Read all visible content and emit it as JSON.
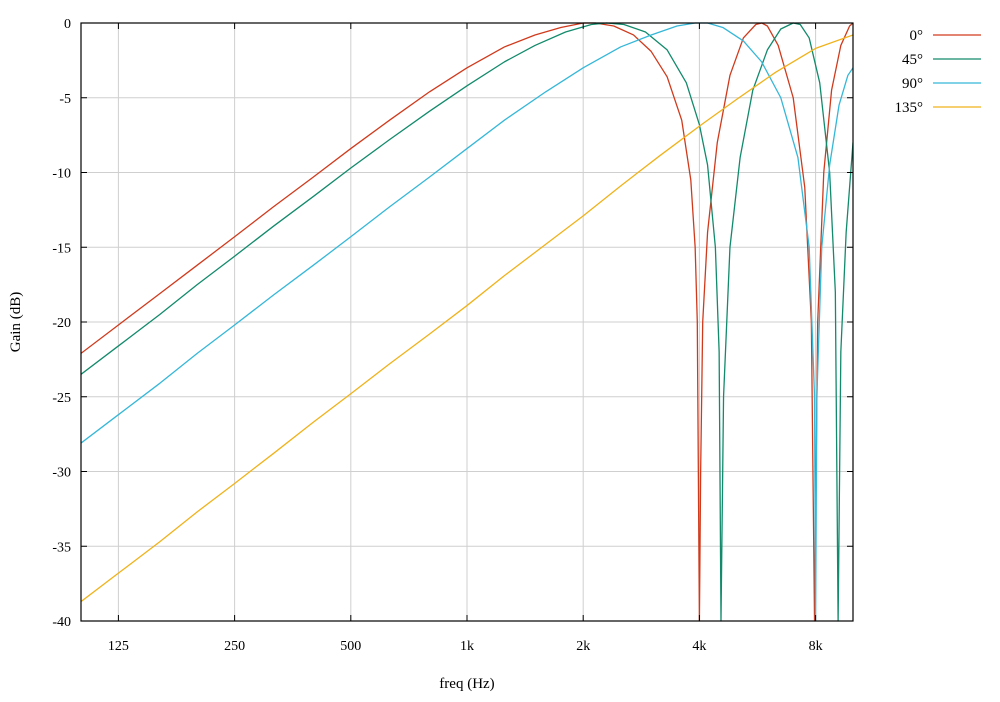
{
  "chart_data": {
    "type": "line",
    "title": "",
    "xlabel": "freq (Hz)",
    "ylabel": "Gain (dB)",
    "xscale": "log",
    "xlim": [
      100,
      10000
    ],
    "ylim": [
      -40,
      0
    ],
    "grid": true,
    "legend_position": "right",
    "x_ticks": [
      {
        "value": 125,
        "label": "125"
      },
      {
        "value": 250,
        "label": "250"
      },
      {
        "value": 500,
        "label": "500"
      },
      {
        "value": 1000,
        "label": "1k"
      },
      {
        "value": 2000,
        "label": "2k"
      },
      {
        "value": 4000,
        "label": "4k"
      },
      {
        "value": 8000,
        "label": "8k"
      }
    ],
    "y_ticks": [
      {
        "value": 0,
        "label": "0"
      },
      {
        "value": -5,
        "label": "-5"
      },
      {
        "value": -10,
        "label": "-10"
      },
      {
        "value": -15,
        "label": "-15"
      },
      {
        "value": -20,
        "label": "-20"
      },
      {
        "value": -25,
        "label": "-25"
      },
      {
        "value": -30,
        "label": "-30"
      },
      {
        "value": -35,
        "label": "-35"
      },
      {
        "value": -40,
        "label": "-40"
      }
    ],
    "series": [
      {
        "name": "0°",
        "color": "#d03a1c",
        "points": [
          [
            100,
            -22.1
          ],
          [
            125,
            -20.2
          ],
          [
            160,
            -18.1
          ],
          [
            200,
            -16.2
          ],
          [
            250,
            -14.3
          ],
          [
            315,
            -12.3
          ],
          [
            400,
            -10.3
          ],
          [
            500,
            -8.4
          ],
          [
            630,
            -6.5
          ],
          [
            800,
            -4.6
          ],
          [
            1000,
            -3.0
          ],
          [
            1250,
            -1.6
          ],
          [
            1500,
            -0.8
          ],
          [
            1750,
            -0.3
          ],
          [
            2000,
            0.0
          ],
          [
            2150,
            0.0
          ],
          [
            2400,
            -0.2
          ],
          [
            2700,
            -0.8
          ],
          [
            3000,
            -1.9
          ],
          [
            3300,
            -3.6
          ],
          [
            3600,
            -6.5
          ],
          [
            3800,
            -10.5
          ],
          [
            3900,
            -15.0
          ],
          [
            3950,
            -20.0
          ],
          [
            4000,
            -40.0
          ],
          [
            4030,
            -30.0
          ],
          [
            4080,
            -20.0
          ],
          [
            4200,
            -14.0
          ],
          [
            4450,
            -8.0
          ],
          [
            4800,
            -3.5
          ],
          [
            5200,
            -1.0
          ],
          [
            5600,
            -0.1
          ],
          [
            5800,
            0.0
          ],
          [
            6000,
            -0.2
          ],
          [
            6400,
            -1.5
          ],
          [
            7000,
            -5.0
          ],
          [
            7500,
            -11.0
          ],
          [
            7800,
            -20.0
          ],
          [
            7950,
            -40.0
          ],
          [
            8100,
            -20.0
          ],
          [
            8400,
            -10.0
          ],
          [
            8800,
            -4.5
          ],
          [
            9300,
            -1.5
          ],
          [
            9800,
            -0.2
          ],
          [
            10000,
            0.0
          ]
        ]
      },
      {
        "name": "45°",
        "color": "#128a6b",
        "points": [
          [
            100,
            -23.5
          ],
          [
            125,
            -21.6
          ],
          [
            160,
            -19.5
          ],
          [
            200,
            -17.5
          ],
          [
            250,
            -15.6
          ],
          [
            315,
            -13.6
          ],
          [
            400,
            -11.6
          ],
          [
            500,
            -9.7
          ],
          [
            630,
            -7.8
          ],
          [
            800,
            -5.9
          ],
          [
            1000,
            -4.2
          ],
          [
            1250,
            -2.6
          ],
          [
            1500,
            -1.5
          ],
          [
            1800,
            -0.6
          ],
          [
            2100,
            -0.1
          ],
          [
            2300,
            0.0
          ],
          [
            2550,
            -0.1
          ],
          [
            2900,
            -0.6
          ],
          [
            3300,
            -1.8
          ],
          [
            3700,
            -4.0
          ],
          [
            4000,
            -6.8
          ],
          [
            4200,
            -9.5
          ],
          [
            4400,
            -15.0
          ],
          [
            4500,
            -22.0
          ],
          [
            4550,
            -40.0
          ],
          [
            4620,
            -25.0
          ],
          [
            4800,
            -15.0
          ],
          [
            5100,
            -9.0
          ],
          [
            5500,
            -4.5
          ],
          [
            6000,
            -1.8
          ],
          [
            6500,
            -0.4
          ],
          [
            7000,
            0.0
          ],
          [
            7300,
            -0.1
          ],
          [
            7700,
            -1.0
          ],
          [
            8200,
            -4.0
          ],
          [
            8700,
            -10.0
          ],
          [
            9000,
            -18.0
          ],
          [
            9150,
            -40.0
          ],
          [
            9300,
            -22.0
          ],
          [
            9600,
            -14.0
          ],
          [
            10000,
            -8.0
          ]
        ]
      },
      {
        "name": "90°",
        "color": "#35b7d8",
        "points": [
          [
            100,
            -28.1
          ],
          [
            125,
            -26.2
          ],
          [
            160,
            -24.1
          ],
          [
            200,
            -22.1
          ],
          [
            250,
            -20.2
          ],
          [
            315,
            -18.2
          ],
          [
            400,
            -16.2
          ],
          [
            500,
            -14.3
          ],
          [
            630,
            -12.3
          ],
          [
            800,
            -10.3
          ],
          [
            1000,
            -8.4
          ],
          [
            1250,
            -6.5
          ],
          [
            1600,
            -4.6
          ],
          [
            2000,
            -3.0
          ],
          [
            2500,
            -1.6
          ],
          [
            3000,
            -0.8
          ],
          [
            3500,
            -0.2
          ],
          [
            3900,
            0.0
          ],
          [
            4200,
            0.0
          ],
          [
            4600,
            -0.3
          ],
          [
            5200,
            -1.2
          ],
          [
            5800,
            -2.6
          ],
          [
            6500,
            -5.0
          ],
          [
            7200,
            -9.0
          ],
          [
            7700,
            -15.0
          ],
          [
            7950,
            -25.0
          ],
          [
            8000,
            -40.0
          ],
          [
            8060,
            -25.0
          ],
          [
            8300,
            -15.0
          ],
          [
            8700,
            -9.5
          ],
          [
            9200,
            -5.5
          ],
          [
            9700,
            -3.5
          ],
          [
            10000,
            -3.0
          ]
        ]
      },
      {
        "name": "135°",
        "color": "#f0b21a",
        "points": [
          [
            100,
            -38.7
          ],
          [
            125,
            -36.8
          ],
          [
            160,
            -34.7
          ],
          [
            200,
            -32.7
          ],
          [
            250,
            -30.8
          ],
          [
            315,
            -28.8
          ],
          [
            400,
            -26.7
          ],
          [
            500,
            -24.8
          ],
          [
            630,
            -22.8
          ],
          [
            800,
            -20.8
          ],
          [
            1000,
            -18.9
          ],
          [
            1250,
            -16.9
          ],
          [
            1600,
            -14.8
          ],
          [
            2000,
            -12.9
          ],
          [
            2500,
            -10.9
          ],
          [
            3150,
            -8.9
          ],
          [
            4000,
            -6.9
          ],
          [
            5000,
            -5.1
          ],
          [
            6300,
            -3.3
          ],
          [
            8000,
            -1.7
          ],
          [
            10000,
            -0.8
          ]
        ]
      }
    ]
  }
}
